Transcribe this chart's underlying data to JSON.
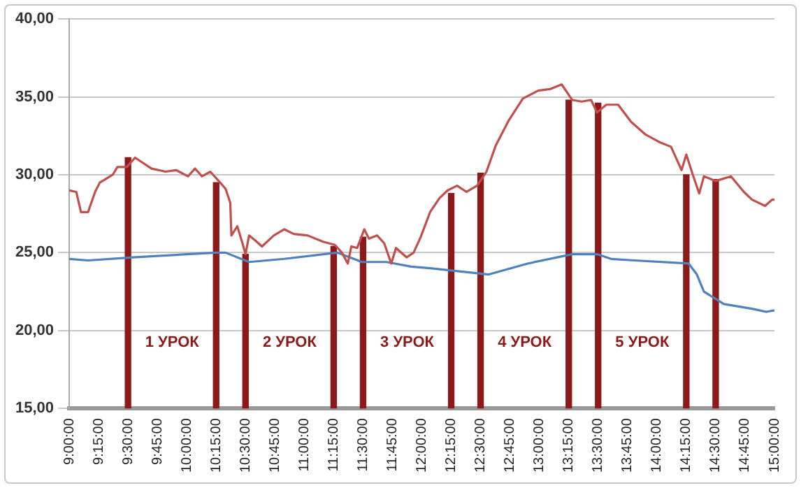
{
  "chart_data": {
    "type": "line",
    "grid": "y",
    "legend": false,
    "marker": "none",
    "xlim": [
      9,
      15
    ],
    "xticks": [
      {
        "value": 9,
        "label": "9:00:00"
      },
      {
        "value": 9.25,
        "label": "9:15:00"
      },
      {
        "value": 9.5,
        "label": "9:30:00"
      },
      {
        "value": 9.75,
        "label": "9:45:00"
      },
      {
        "value": 10,
        "label": "10:00:00"
      },
      {
        "value": 10.25,
        "label": "10:15:00"
      },
      {
        "value": 10.5,
        "label": "10:30:00"
      },
      {
        "value": 10.75,
        "label": "10:45:00"
      },
      {
        "value": 11,
        "label": "11:00:00"
      },
      {
        "value": 11.25,
        "label": "11:15:00"
      },
      {
        "value": 11.5,
        "label": "11:30:00"
      },
      {
        "value": 11.75,
        "label": "11:45:00"
      },
      {
        "value": 12,
        "label": "12:00:00"
      },
      {
        "value": 12.25,
        "label": "12:15:00"
      },
      {
        "value": 12.5,
        "label": "12:30:00"
      },
      {
        "value": 12.75,
        "label": "12:45:00"
      },
      {
        "value": 13,
        "label": "13:00:00"
      },
      {
        "value": 13.25,
        "label": "13:15:00"
      },
      {
        "value": 13.5,
        "label": "13:30:00"
      },
      {
        "value": 13.75,
        "label": "13:45:00"
      },
      {
        "value": 14,
        "label": "14:00:00"
      },
      {
        "value": 14.25,
        "label": "14:15:00"
      },
      {
        "value": 14.5,
        "label": "14:30:00"
      },
      {
        "value": 14.75,
        "label": "14:45:00"
      },
      {
        "value": 15,
        "label": "15:00:00"
      }
    ],
    "ylim": [
      15,
      40
    ],
    "yticks": [
      {
        "value": 15,
        "label": "15,00"
      },
      {
        "value": 20,
        "label": "20,00"
      },
      {
        "value": 25,
        "label": "25,00"
      },
      {
        "value": 30,
        "label": "30,00"
      },
      {
        "value": 35,
        "label": "35,00"
      },
      {
        "value": 40,
        "label": "40,00"
      }
    ],
    "series": [
      {
        "color": "#c0504d",
        "x": [
          9,
          9.06,
          9.1,
          9.16,
          9.22,
          9.26,
          9.37,
          9.41,
          9.49,
          9.56,
          9.7,
          9.82,
          9.91,
          10.01,
          10.07,
          10.13,
          10.2,
          10.26,
          10.33,
          10.37,
          10.38,
          10.43,
          10.47,
          10.5,
          10.53,
          10.58,
          10.64,
          10.74,
          10.83,
          10.91,
          11.03,
          11.16,
          11.26,
          11.32,
          11.37,
          11.4,
          11.45,
          11.51,
          11.55,
          11.62,
          11.68,
          11.74,
          11.78,
          11.87,
          11.93,
          11.99,
          12.07,
          12.15,
          12.22,
          12.3,
          12.38,
          12.47,
          12.55,
          12.63,
          12.74,
          12.86,
          12.99,
          13.09,
          13.19,
          13.28,
          13.36,
          13.44,
          13.49,
          13.57,
          13.67,
          13.78,
          13.9,
          14.02,
          14.12,
          14.21,
          14.25,
          14.31,
          14.36,
          14.4,
          14.5,
          14.63,
          14.74,
          14.81,
          14.92,
          14.98,
          15
        ],
        "values": [
          29.0,
          28.9,
          27.6,
          27.6,
          28.9,
          29.5,
          30.0,
          30.5,
          30.5,
          31.1,
          30.4,
          30.2,
          30.3,
          29.9,
          30.4,
          29.9,
          30.2,
          29.7,
          29.1,
          28.2,
          26.1,
          26.7,
          25.7,
          24.9,
          26.1,
          25.8,
          25.4,
          26.1,
          26.5,
          26.2,
          26.1,
          25.7,
          25.5,
          25.0,
          24.3,
          25.4,
          25.3,
          26.5,
          25.9,
          26.1,
          25.6,
          24.3,
          25.3,
          24.7,
          25.0,
          26.0,
          27.6,
          28.5,
          29.0,
          29.3,
          28.9,
          29.3,
          30.2,
          31.9,
          33.5,
          34.9,
          35.4,
          35.5,
          35.8,
          34.8,
          34.7,
          34.8,
          34.0,
          34.5,
          34.5,
          33.4,
          32.6,
          32.1,
          31.8,
          30.3,
          31.3,
          29.9,
          28.8,
          29.9,
          29.6,
          29.9,
          28.9,
          28.4,
          28.0,
          28.4,
          28.4
        ]
      },
      {
        "color": "#4f81bd",
        "x": [
          9,
          9.16,
          9.54,
          10.25,
          10.33,
          10.53,
          10.83,
          11.28,
          11.49,
          11.7,
          11.91,
          12.07,
          12.57,
          12.9,
          13.28,
          13.49,
          13.61,
          13.81,
          14.27,
          14.34,
          14.4,
          14.57,
          14.81,
          14.93,
          15
        ],
        "values": [
          24.6,
          24.5,
          24.7,
          25.0,
          25.0,
          24.4,
          24.6,
          25.0,
          24.4,
          24.4,
          24.1,
          24.0,
          23.6,
          24.3,
          24.9,
          24.9,
          24.6,
          24.5,
          24.3,
          23.6,
          22.5,
          21.7,
          21.4,
          21.2,
          21.3
        ]
      },
      {
        "type": "bar",
        "color": "#8b1a1a",
        "x": [
          9.5,
          10.25,
          10.5,
          11.25,
          11.5,
          12.25,
          12.5,
          13.25,
          13.5,
          14.25,
          14.5
        ],
        "values": [
          31.1,
          29.5,
          24.9,
          25.4,
          26.0,
          28.8,
          30.1,
          34.8,
          34.6,
          30.0,
          29.7
        ]
      }
    ],
    "annotations": [
      "1 УРОК",
      "2 УРОК",
      "3 УРОК",
      "4 УРОК",
      "5 УРОК"
    ]
  }
}
